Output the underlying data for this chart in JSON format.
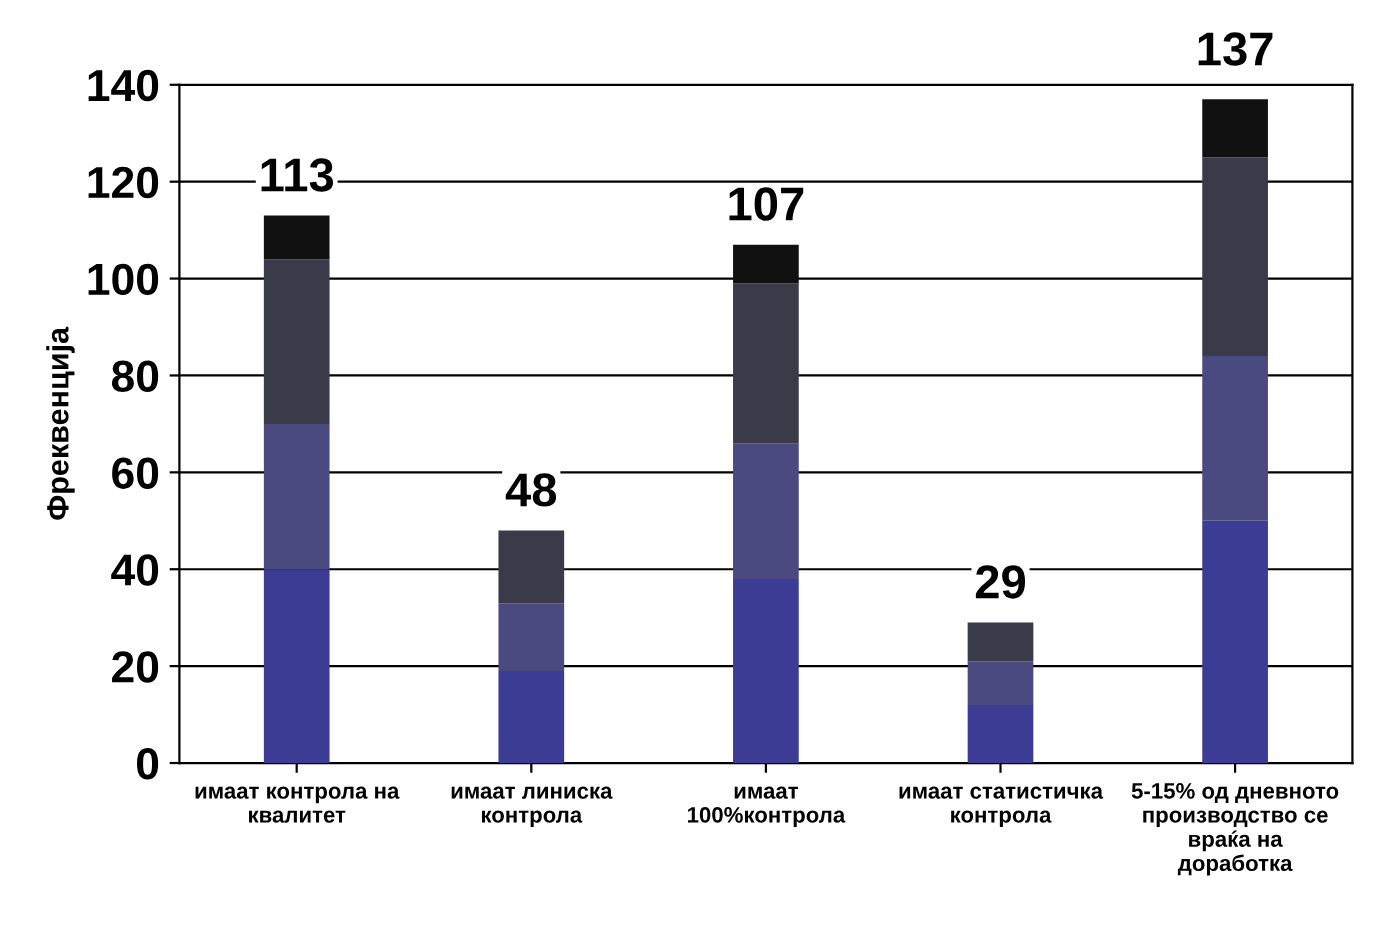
{
  "chart_data": {
    "type": "bar",
    "stacked": true,
    "ylabel": "Фреквенција",
    "categories": [
      "имаат контрола на\nквалитет",
      "имаат линиска\nконтрола",
      "имаат\n100%контрола",
      "имаат статистичка\nконтрола",
      "5-15% од дневното\nпроизводство се\nвраќа на\nдоработка"
    ],
    "series": [
      {
        "color": "#3c3c94",
        "values": [
          40,
          19,
          38,
          12,
          50
        ]
      },
      {
        "color": "#4a4a80",
        "values": [
          30,
          14,
          28,
          9,
          34
        ]
      },
      {
        "color": "#3a3a48",
        "values": [
          34,
          15,
          33,
          8,
          41
        ]
      },
      {
        "color": "#111111",
        "values": [
          9,
          0,
          8,
          0,
          12
        ]
      }
    ],
    "totals": [
      "113",
      "48",
      "107",
      "29",
      "137"
    ],
    "ylim": [
      0,
      140
    ],
    "yticks": [
      0,
      20,
      40,
      60,
      80,
      100,
      120,
      140
    ],
    "grid": "y",
    "legend": false
  }
}
